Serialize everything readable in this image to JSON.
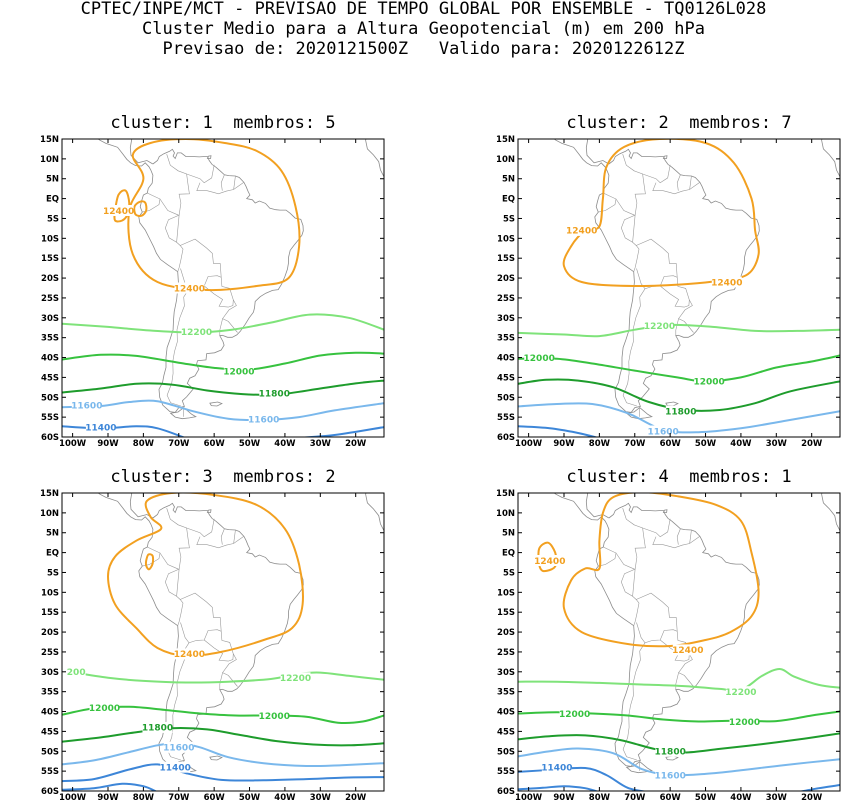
{
  "header": {
    "line1": "CPTEC/INPE/MCT - PREVISAO DE TEMPO GLOBAL POR ENSEMBLE - TQ0126L028",
    "line2": "Cluster Medio para a Altura Geopotencial (m) em 200 hPa",
    "line3": "Previsao de: 2020121500Z   Valido para: 2020122612Z"
  },
  "axes": {
    "lat_labels": [
      "15N",
      "10N",
      "5N",
      "EQ",
      "5S",
      "10S",
      "15S",
      "20S",
      "25S",
      "30S",
      "35S",
      "40S",
      "45S",
      "50S",
      "55S",
      "60S"
    ],
    "lon_labels": [
      "100W",
      "90W",
      "80W",
      "70W",
      "60W",
      "50W",
      "40W",
      "30W",
      "20W"
    ]
  },
  "colors": {
    "12400": "#f2a020",
    "12200": "#7fe37a",
    "12000": "#37c23f",
    "11800": "#1e9c2c",
    "11600": "#7ab8ec",
    "11400": "#3d86d8"
  },
  "panels": [
    {
      "title": "cluster: 1  membros: 5",
      "labels": [
        {
          "text": "12400",
          "lon": -87,
          "lat": -3,
          "color": "#f2a020"
        },
        {
          "text": "12400",
          "lon": -67,
          "lat": -22.5,
          "color": "#f2a020"
        },
        {
          "text": "12200",
          "lon": -65,
          "lat": -33.5,
          "color": "#7fe37a"
        },
        {
          "text": "12000",
          "lon": -53,
          "lat": -43.5,
          "color": "#37c23f"
        },
        {
          "text": "11800",
          "lon": -43,
          "lat": -49,
          "color": "#1e9c2c"
        },
        {
          "text": "11600",
          "lon": -96,
          "lat": -52,
          "color": "#7ab8ec"
        },
        {
          "text": "11600",
          "lon": -46,
          "lat": -55.5,
          "color": "#7ab8ec"
        },
        {
          "text": "11400",
          "lon": -92,
          "lat": -57.5,
          "color": "#3d86d8"
        }
      ]
    },
    {
      "title": "cluster: 2  membros: 7",
      "labels": [
        {
          "text": "12400",
          "lon": -85,
          "lat": -8,
          "color": "#f2a020"
        },
        {
          "text": "12400",
          "lon": -44,
          "lat": -21,
          "color": "#f2a020"
        },
        {
          "text": "12200",
          "lon": -63,
          "lat": -32,
          "color": "#7fe37a"
        },
        {
          "text": "12000",
          "lon": -97,
          "lat": -40,
          "color": "#37c23f"
        },
        {
          "text": "12000",
          "lon": -49,
          "lat": -46,
          "color": "#37c23f"
        },
        {
          "text": "11800",
          "lon": -57,
          "lat": -53.5,
          "color": "#1e9c2c"
        },
        {
          "text": "11600",
          "lon": -62,
          "lat": -58.5,
          "color": "#7ab8ec"
        }
      ]
    },
    {
      "title": "cluster: 3  membros: 2",
      "labels": [
        {
          "text": "12400",
          "lon": -67,
          "lat": -25.5,
          "color": "#f2a020"
        },
        {
          "text": "200",
          "lon": -99,
          "lat": -30,
          "color": "#7fe37a"
        },
        {
          "text": "12200",
          "lon": -37,
          "lat": -31.5,
          "color": "#7fe37a"
        },
        {
          "text": "12000",
          "lon": -91,
          "lat": -39,
          "color": "#37c23f"
        },
        {
          "text": "12000",
          "lon": -43,
          "lat": -41,
          "color": "#37c23f"
        },
        {
          "text": "11800",
          "lon": -76,
          "lat": -44,
          "color": "#1e9c2c"
        },
        {
          "text": "11600",
          "lon": -70,
          "lat": -49,
          "color": "#7ab8ec"
        },
        {
          "text": "11400",
          "lon": -71,
          "lat": -54,
          "color": "#3d86d8"
        }
      ]
    },
    {
      "title": "cluster: 4  membros: 1",
      "labels": [
        {
          "text": "12400",
          "lon": -94,
          "lat": -2,
          "color": "#f2a020"
        },
        {
          "text": "12400",
          "lon": -55,
          "lat": -24.5,
          "color": "#f2a020"
        },
        {
          "text": "12200",
          "lon": -40,
          "lat": -35,
          "color": "#7fe37a"
        },
        {
          "text": "12000",
          "lon": -87,
          "lat": -40.5,
          "color": "#37c23f"
        },
        {
          "text": "12000",
          "lon": -39,
          "lat": -42.5,
          "color": "#37c23f"
        },
        {
          "text": "11800",
          "lon": -60,
          "lat": -50,
          "color": "#1e9c2c"
        },
        {
          "text": "11400",
          "lon": -92,
          "lat": -54,
          "color": "#3d86d8"
        },
        {
          "text": "11600",
          "lon": -60,
          "lat": -56,
          "color": "#7ab8ec"
        }
      ]
    }
  ]
}
